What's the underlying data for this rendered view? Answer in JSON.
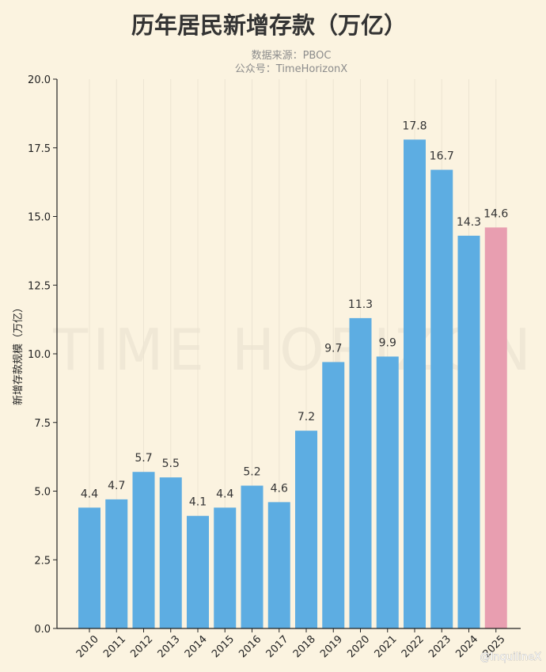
{
  "chart_data": {
    "type": "bar",
    "title": "历年居民新增存款（万亿）",
    "subtitle_lines": [
      "数据来源：PBOC",
      "公众号：TimeHorizonX"
    ],
    "ylabel": "新增存款规模（万亿）",
    "xlabel": "",
    "categories": [
      "2010",
      "2011",
      "2012",
      "2013",
      "2014",
      "2015",
      "2016",
      "2017",
      "2018",
      "2019",
      "2020",
      "2021",
      "2022",
      "2023",
      "2024",
      "2025"
    ],
    "values": [
      4.4,
      4.7,
      5.7,
      5.5,
      4.1,
      4.4,
      5.2,
      4.6,
      7.2,
      9.7,
      11.3,
      9.9,
      17.8,
      16.7,
      14.3,
      14.6
    ],
    "value_labels": [
      "4.4",
      "4.7",
      "5.7",
      "5.5",
      "4.1",
      "4.4",
      "5.2",
      "4.6",
      "7.2",
      "9.7",
      "11.3",
      "9.9",
      "17.8",
      "16.7",
      "14.3",
      "14.6"
    ],
    "ylim": [
      0,
      20
    ],
    "yticks": [
      "0.0",
      "2.5",
      "5.0",
      "7.5",
      "10.0",
      "12.5",
      "15.0",
      "17.5",
      "20.0"
    ],
    "grid": "vertical-light",
    "legend": "none",
    "colors": {
      "bar": "#5DADE2",
      "highlight_bar": "#E89EB0",
      "highlight_category": "2025"
    },
    "watermark": "TIME HORIZON",
    "credit": "@InquilineX"
  }
}
